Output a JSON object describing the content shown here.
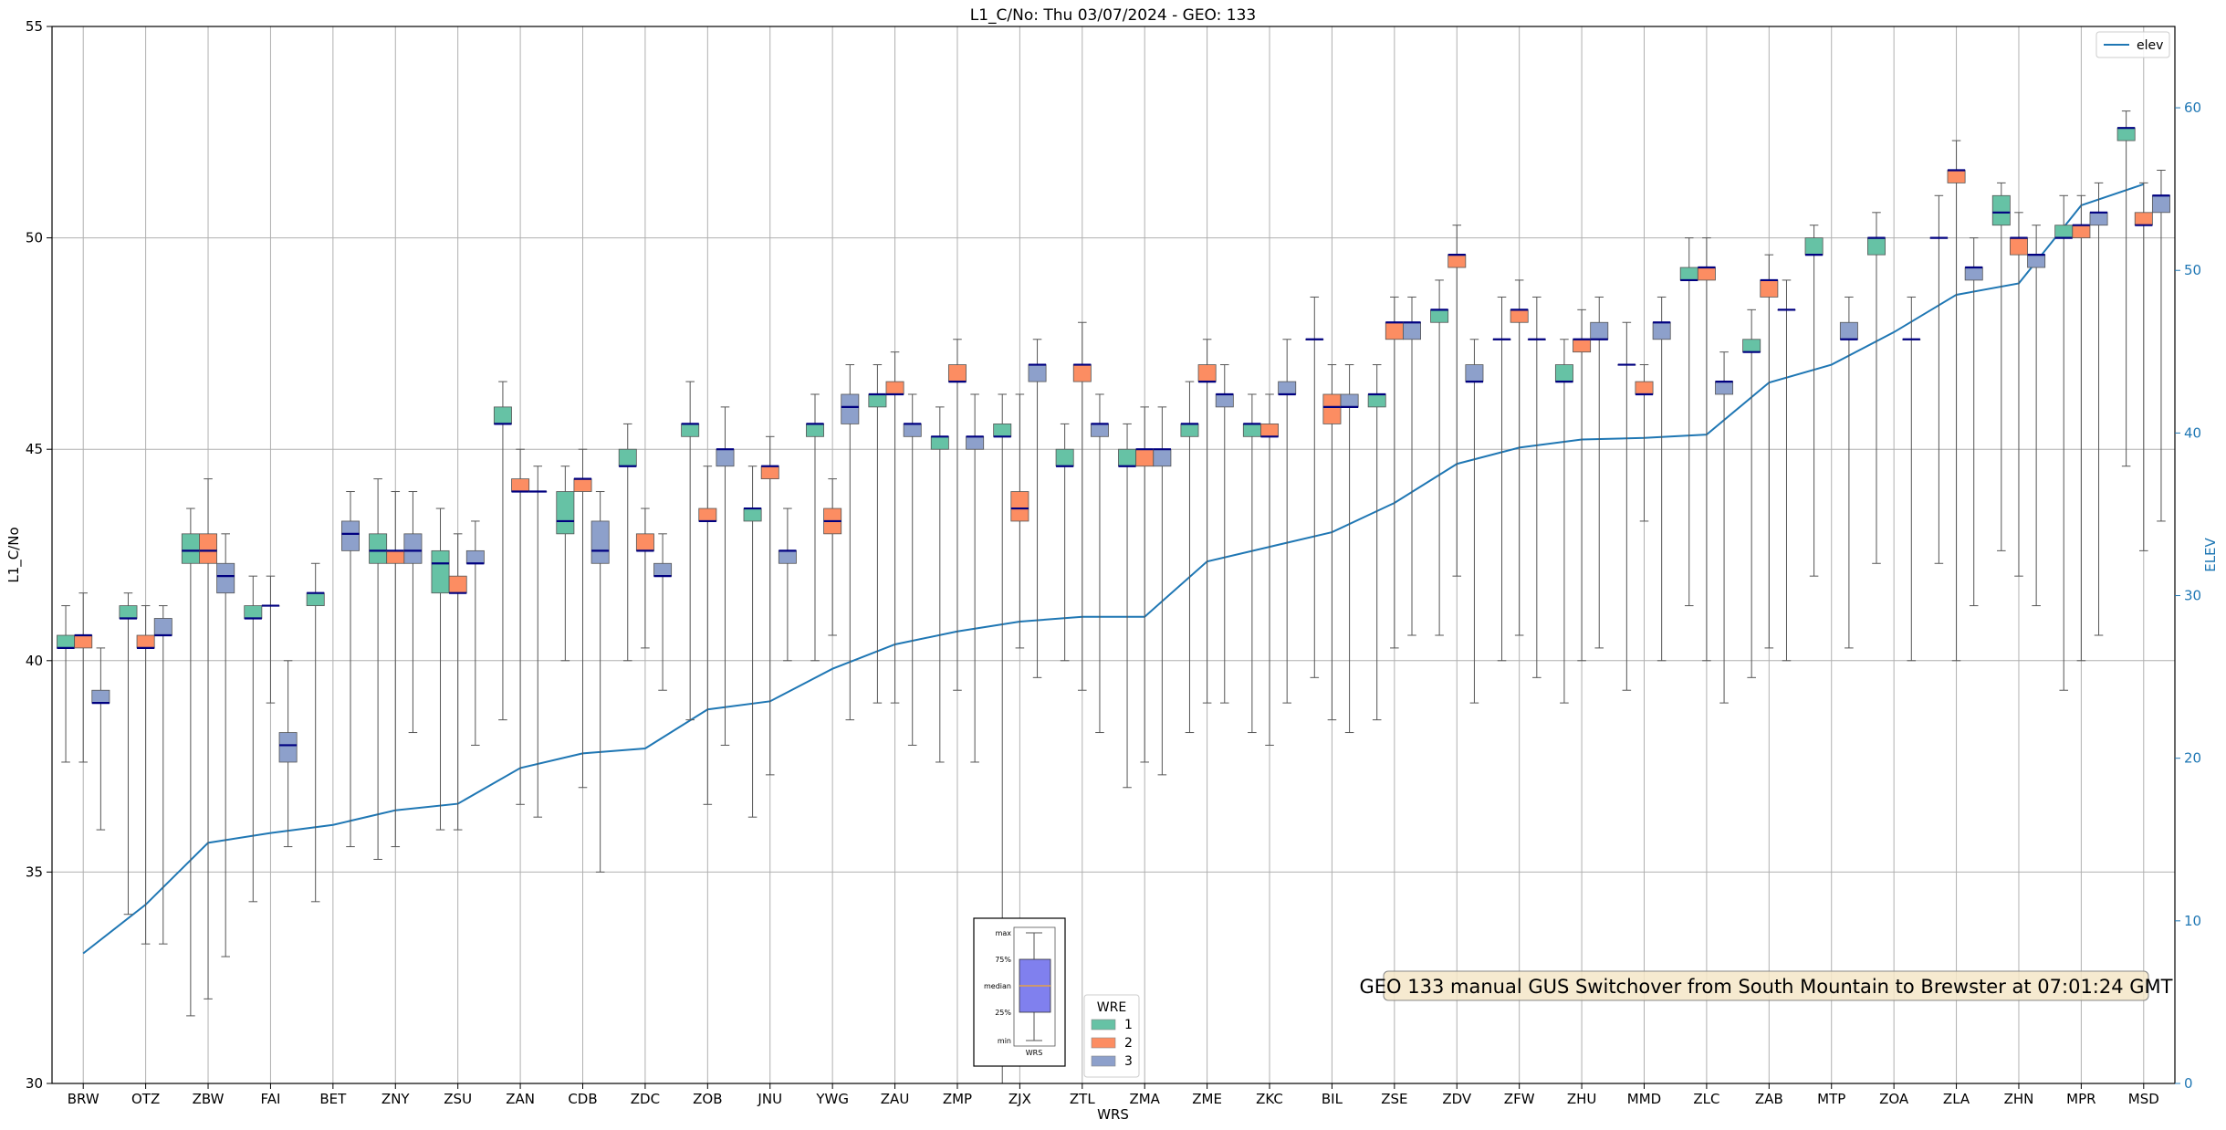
{
  "chart_data": {
    "type": "box",
    "title": "L1_C/No: Thu 03/07/2024 - GEO: 133",
    "xlabel": "WRS",
    "ylabel": "L1_C/No",
    "y2label": "ELEV",
    "ylim": [
      30,
      55
    ],
    "y2lim": [
      0,
      65
    ],
    "yticks": [
      30,
      35,
      40,
      45,
      50,
      55
    ],
    "y2ticks": [
      0,
      10,
      20,
      30,
      40,
      50,
      60
    ],
    "grid": true,
    "categories": [
      "BRW",
      "OTZ",
      "ZBW",
      "FAI",
      "BET",
      "ZNY",
      "ZSU",
      "ZAN",
      "CDB",
      "ZDC",
      "ZOB",
      "JNU",
      "YWG",
      "ZAU",
      "ZMP",
      "ZJX",
      "ZTL",
      "ZMA",
      "ZME",
      "ZKC",
      "BIL",
      "ZSE",
      "ZDV",
      "ZFW",
      "ZHU",
      "MMD",
      "ZLC",
      "ZAB",
      "MTP",
      "ZOA",
      "ZLA",
      "ZHN",
      "MPR",
      "MSD"
    ],
    "box_legend": {
      "title": "WRE",
      "position": "bottom-center",
      "entries": [
        {
          "label": "1",
          "color": "#66c2a5"
        },
        {
          "label": "2",
          "color": "#fc8d62"
        },
        {
          "label": "3",
          "color": "#8da0cb"
        }
      ]
    },
    "line_legend": {
      "label": "elev",
      "color": "#1f77b4",
      "position": "top-right"
    },
    "box_key": {
      "labels": [
        "max",
        "75%",
        "median",
        "25%",
        "min"
      ],
      "xlabel": "WRS",
      "fill": "#8080ee",
      "median_color": "#e6a046"
    },
    "annotation": "GEO 133 manual GUS Switchover from South Mountain to Brewster at 07:01:24 GMT",
    "elevation": [
      8,
      11,
      14.8,
      15.4,
      15.9,
      16.8,
      17.2,
      19.4,
      20.3,
      20.6,
      23,
      23.5,
      25.5,
      27,
      27.8,
      28.4,
      28.7,
      28.7,
      32.1,
      33,
      33.9,
      35.7,
      38.1,
      39.1,
      39.6,
      39.7,
      39.9,
      43.1,
      44.2,
      46.2,
      48.5,
      49.2,
      54,
      55.3
    ],
    "series": [
      {
        "name": "1",
        "boxes": [
          [
            37.6,
            40.3,
            40.3,
            40.6,
            41.3
          ],
          [
            34,
            41,
            41,
            41.3,
            41.6
          ],
          [
            31.6,
            42.3,
            42.6,
            43,
            43.6
          ],
          [
            34.3,
            41,
            41,
            41.3,
            42
          ],
          [
            34.3,
            41.3,
            41.6,
            41.6,
            42.3
          ],
          [
            35.3,
            42.3,
            42.6,
            43,
            44.3
          ],
          [
            36,
            41.6,
            42.3,
            42.6,
            43.6
          ],
          [
            38.6,
            45.6,
            45.6,
            46,
            46.6
          ],
          [
            40,
            43,
            43.3,
            44,
            44.6
          ],
          [
            40,
            44.6,
            44.6,
            45,
            45.6
          ],
          [
            38.6,
            45.3,
            45.6,
            45.6,
            46.6
          ],
          [
            36.3,
            43.3,
            43.6,
            43.6,
            44.6
          ],
          [
            40,
            45.3,
            45.6,
            45.6,
            46.3
          ],
          [
            39,
            46,
            46.3,
            46.3,
            47
          ],
          [
            37.6,
            45,
            45.3,
            45.3,
            46
          ],
          [
            30,
            45.3,
            45.3,
            45.6,
            46.3
          ],
          [
            40,
            44.6,
            44.6,
            45,
            45.6
          ],
          [
            37,
            44.6,
            44.6,
            45,
            45.6
          ],
          [
            38.3,
            45.3,
            45.6,
            45.6,
            46.6
          ],
          [
            38.3,
            45.3,
            45.6,
            45.6,
            46.3
          ],
          [
            39.6,
            47.6,
            47.6,
            47.6,
            48.6
          ],
          [
            38.6,
            46,
            46.3,
            46.3,
            47
          ],
          [
            40.6,
            48,
            48.3,
            48.3,
            49
          ],
          [
            40,
            47.6,
            47.6,
            47.6,
            48.6
          ],
          [
            39,
            46.6,
            46.6,
            47,
            47.6
          ],
          [
            39.3,
            47,
            47,
            47,
            48
          ],
          [
            41.3,
            49,
            49,
            49.3,
            50
          ],
          [
            39.6,
            47.3,
            47.3,
            47.6,
            48.3
          ],
          [
            42,
            49.6,
            49.6,
            50,
            50.3
          ],
          [
            42.3,
            49.6,
            50,
            50,
            50.6
          ],
          [
            42.3,
            50,
            50,
            50,
            51
          ],
          [
            42.6,
            50.3,
            50.6,
            51,
            51.3
          ],
          [
            39.3,
            50,
            50,
            50.3,
            51
          ],
          [
            44.6,
            52.3,
            52.6,
            52.6,
            53
          ]
        ]
      },
      {
        "name": "2",
        "boxes": [
          [
            37.6,
            40.3,
            40.6,
            40.6,
            41.6
          ],
          [
            33.3,
            40.3,
            40.3,
            40.6,
            41.3
          ],
          [
            32,
            42.3,
            42.6,
            43,
            44.3
          ],
          [
            39,
            41.3,
            41.3,
            41.3,
            42
          ],
          null,
          [
            35.6,
            42.3,
            42.6,
            42.6,
            44
          ],
          [
            36,
            41.6,
            41.6,
            42,
            43
          ],
          [
            36.6,
            44,
            44,
            44.3,
            45
          ],
          [
            37,
            44,
            44.3,
            44.3,
            45
          ],
          [
            40.3,
            42.6,
            42.6,
            43,
            43.6
          ],
          [
            36.6,
            43.3,
            43.3,
            43.6,
            44.6
          ],
          [
            37.3,
            44.3,
            44.6,
            44.6,
            45.3
          ],
          [
            40.6,
            43,
            43.3,
            43.6,
            44.3
          ],
          [
            39,
            46.3,
            46.3,
            46.6,
            47.3
          ],
          [
            39.3,
            46.6,
            46.6,
            47,
            47.6
          ],
          [
            40.3,
            43.3,
            43.6,
            44,
            46.3
          ],
          [
            39.3,
            46.6,
            47,
            47,
            48
          ],
          [
            37.6,
            44.6,
            45,
            45,
            46
          ],
          [
            39,
            46.6,
            46.6,
            47,
            47.6
          ],
          [
            38,
            45.3,
            45.3,
            45.6,
            46.3
          ],
          [
            38.6,
            45.6,
            46,
            46.3,
            47
          ],
          [
            40.3,
            47.6,
            48,
            48,
            48.6
          ],
          [
            42,
            49.3,
            49.6,
            49.6,
            50.3
          ],
          [
            40.6,
            48,
            48.3,
            48.3,
            49
          ],
          [
            40,
            47.3,
            47.6,
            47.6,
            48.3
          ],
          [
            43.3,
            46.3,
            46.3,
            46.6,
            47
          ],
          [
            40,
            49,
            49.3,
            49.3,
            50
          ],
          [
            40.3,
            48.6,
            49,
            49,
            49.6
          ],
          null,
          null,
          [
            40,
            51.3,
            51.6,
            51.6,
            52.3
          ],
          [
            42,
            49.6,
            50,
            50,
            50.6
          ],
          [
            40,
            50,
            50.3,
            50.3,
            51
          ],
          [
            42.6,
            50.3,
            50.3,
            50.6,
            51.3
          ]
        ]
      },
      {
        "name": "3",
        "boxes": [
          [
            36,
            39,
            39,
            39.3,
            40.3
          ],
          [
            33.3,
            40.6,
            40.6,
            41,
            41.3
          ],
          [
            33,
            41.6,
            42,
            42.3,
            43
          ],
          [
            35.6,
            37.6,
            38,
            38.3,
            40
          ],
          [
            35.6,
            42.6,
            43,
            43.3,
            44
          ],
          [
            38.3,
            42.3,
            42.6,
            43,
            44
          ],
          [
            38,
            42.3,
            42.3,
            42.6,
            43.3
          ],
          [
            36.3,
            44,
            44,
            44,
            44.6
          ],
          [
            35,
            42.3,
            42.6,
            43.3,
            44
          ],
          [
            39.3,
            42,
            42,
            42.3,
            43
          ],
          [
            38,
            44.6,
            45,
            45,
            46
          ],
          [
            40,
            42.3,
            42.6,
            42.6,
            43.6
          ],
          [
            38.6,
            45.6,
            46,
            46.3,
            47
          ],
          [
            38,
            45.3,
            45.6,
            45.6,
            46.3
          ],
          [
            37.6,
            45,
            45.3,
            45.3,
            46.3
          ],
          [
            39.6,
            46.6,
            47,
            47,
            47.6
          ],
          [
            38.3,
            45.3,
            45.6,
            45.6,
            46.3
          ],
          [
            37.3,
            44.6,
            45,
            45,
            46
          ],
          [
            39,
            46,
            46.3,
            46.3,
            47
          ],
          [
            39,
            46.3,
            46.3,
            46.6,
            47.6
          ],
          [
            38.3,
            46,
            46,
            46.3,
            47
          ],
          [
            40.6,
            47.6,
            48,
            48,
            48.6
          ],
          [
            39,
            46.6,
            46.6,
            47,
            47.6
          ],
          [
            39.6,
            47.6,
            47.6,
            47.6,
            48.6
          ],
          [
            40.3,
            47.6,
            47.6,
            48,
            48.6
          ],
          [
            40,
            47.6,
            48,
            48,
            48.6
          ],
          [
            39,
            46.3,
            46.6,
            46.6,
            47.3
          ],
          [
            40,
            48.3,
            48.3,
            48.3,
            49
          ],
          [
            40.3,
            47.6,
            47.6,
            48,
            48.6
          ],
          [
            40,
            47.6,
            47.6,
            47.6,
            48.6
          ],
          [
            41.3,
            49,
            49.3,
            49.3,
            50
          ],
          [
            41.3,
            49.3,
            49.6,
            49.6,
            50.3
          ],
          [
            40.6,
            50.3,
            50.6,
            50.6,
            51.3
          ],
          [
            43.3,
            50.6,
            51,
            51,
            51.6
          ]
        ]
      }
    ]
  }
}
